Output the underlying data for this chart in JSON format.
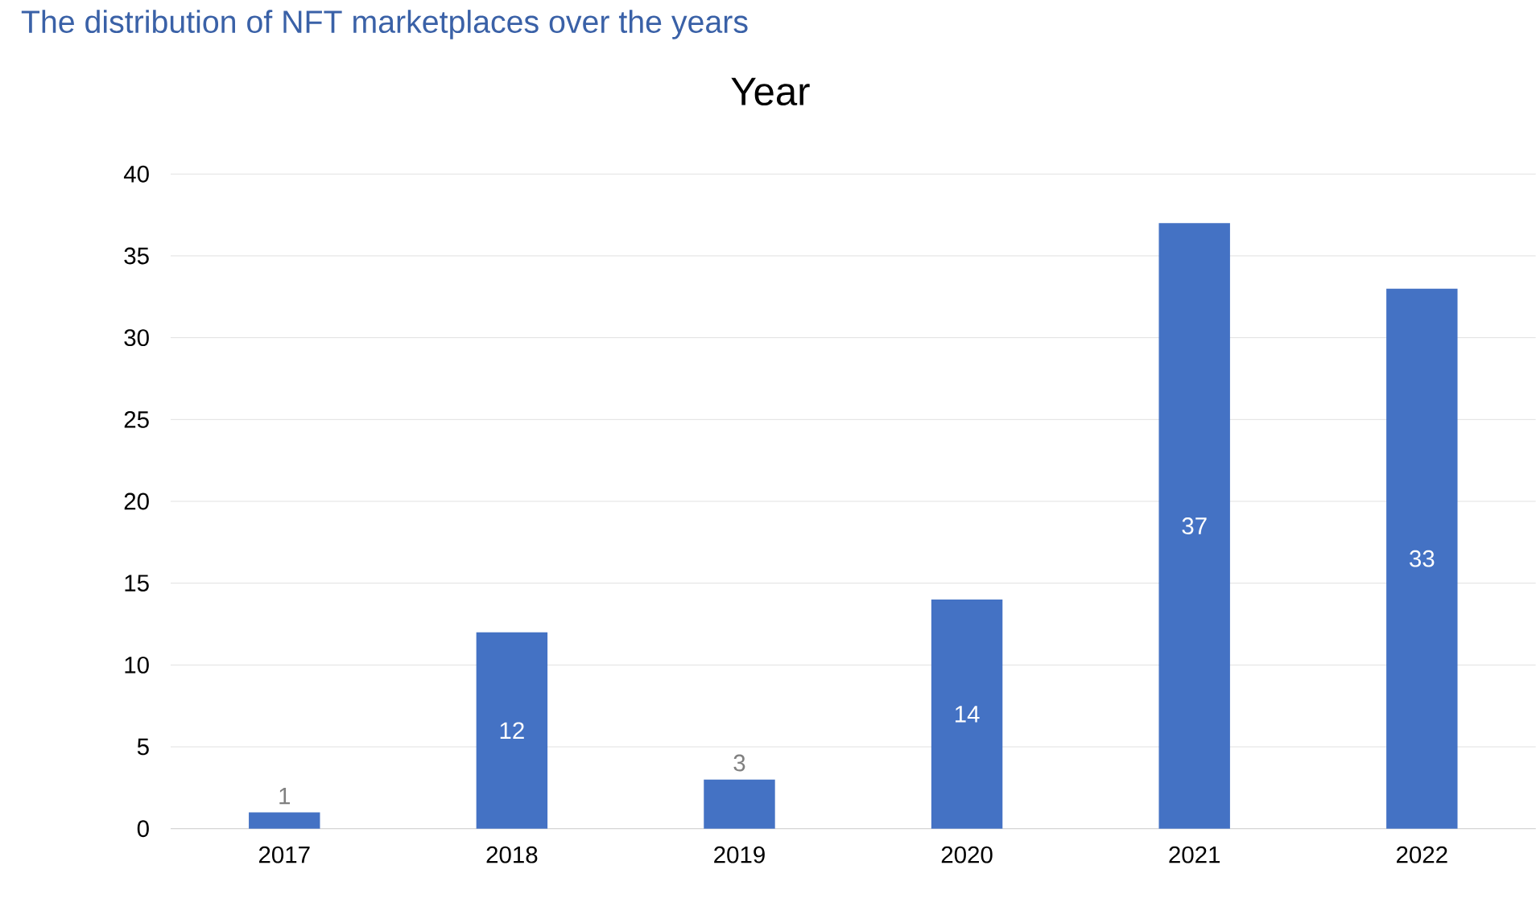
{
  "chart_data": {
    "type": "bar",
    "title": "The distribution of NFT marketplaces over the years",
    "subtitle": "Year",
    "categories": [
      "2017",
      "2018",
      "2019",
      "2020",
      "2021",
      "2022"
    ],
    "values": [
      1,
      12,
      3,
      14,
      37,
      33
    ],
    "color": "#4472c4",
    "ylim": [
      0,
      40
    ],
    "yticks": [
      0,
      5,
      10,
      15,
      20,
      25,
      30,
      35,
      40
    ],
    "grid": "y",
    "data_labels": true
  }
}
